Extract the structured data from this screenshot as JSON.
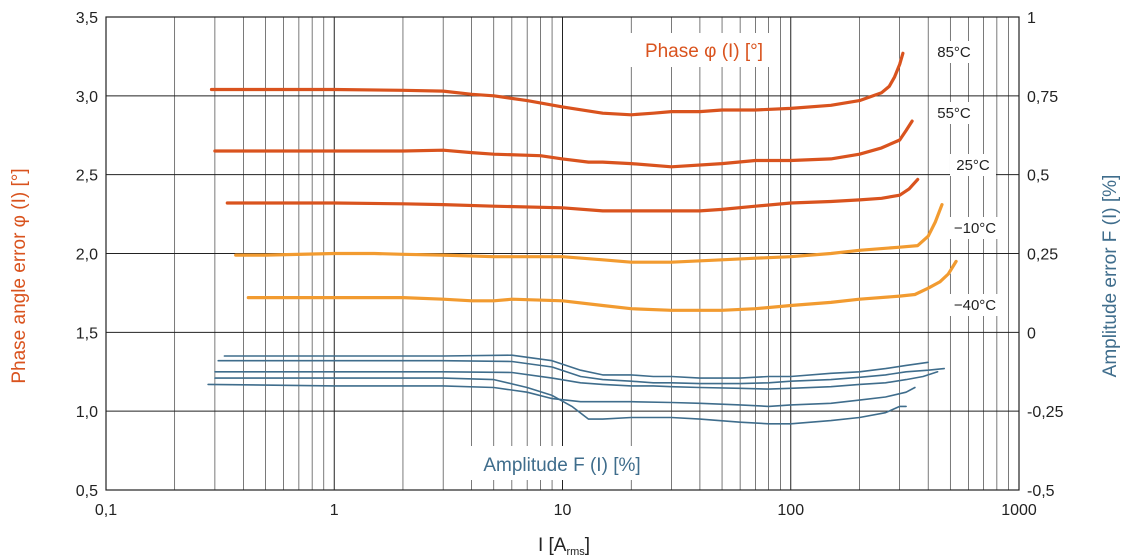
{
  "chart_data": {
    "type": "line",
    "xlabel_main": "I [A",
    "xlabel_sub": "rms",
    "xlabel_end": "]",
    "ylabel_left": "Phase angle error φ (I) [°]",
    "ylabel_right": "Amplitude error F (I) [%]",
    "x_scale": "log",
    "xlim": [
      0.1,
      1000
    ],
    "ylim_left": [
      0.5,
      3.5
    ],
    "ylim_right": [
      -0.5,
      1
    ],
    "grid": true,
    "x_ticks": [
      {
        "value": 0.1,
        "label": "0,1"
      },
      {
        "value": 1,
        "label": "1"
      },
      {
        "value": 10,
        "label": "10"
      },
      {
        "value": 100,
        "label": "100"
      },
      {
        "value": 1000,
        "label": "1000"
      }
    ],
    "y_ticks_left": [
      {
        "value": 0.5,
        "label": "0,5"
      },
      {
        "value": 1.0,
        "label": "1,0"
      },
      {
        "value": 1.5,
        "label": "1,5"
      },
      {
        "value": 2.0,
        "label": "2,0"
      },
      {
        "value": 2.5,
        "label": "2,5"
      },
      {
        "value": 3.0,
        "label": "3,0"
      },
      {
        "value": 3.5,
        "label": "3,5"
      }
    ],
    "y_ticks_right": [
      {
        "value": -0.5,
        "label": "-0,5"
      },
      {
        "value": -0.25,
        "label": "-0,25"
      },
      {
        "value": 0,
        "label": "0"
      },
      {
        "value": 0.25,
        "label": "0,25"
      },
      {
        "value": 0.5,
        "label": "0,5"
      },
      {
        "value": 0.75,
        "label": "0,75"
      },
      {
        "value": 1,
        "label": "1"
      }
    ],
    "annotations": {
      "phase": "Phase φ (I) [°]",
      "amplitude": "Amplitude F (I) [%]"
    },
    "colors": {
      "phase_hot": "#d9531e",
      "phase_cold": "#f29b30",
      "amplitude": "#3f6d8c",
      "phase_text": "#d9531e",
      "amplitude_text": "#3f6d8c",
      "grid": "#222222"
    },
    "series": [
      {
        "name": "85°C",
        "group": "phase",
        "color": "#d9531e",
        "points": [
          [
            0.29,
            3.04
          ],
          [
            0.5,
            3.04
          ],
          [
            1,
            3.04
          ],
          [
            2,
            3.035
          ],
          [
            3,
            3.03
          ],
          [
            4,
            3.01
          ],
          [
            5,
            3.0
          ],
          [
            7,
            2.97
          ],
          [
            10,
            2.93
          ],
          [
            15,
            2.89
          ],
          [
            20,
            2.88
          ],
          [
            25,
            2.89
          ],
          [
            30,
            2.9
          ],
          [
            40,
            2.9
          ],
          [
            50,
            2.91
          ],
          [
            70,
            2.91
          ],
          [
            100,
            2.92
          ],
          [
            150,
            2.94
          ],
          [
            200,
            2.97
          ],
          [
            250,
            3.02
          ],
          [
            270,
            3.06
          ],
          [
            285,
            3.12
          ],
          [
            300,
            3.2
          ],
          [
            310,
            3.27
          ]
        ]
      },
      {
        "name": "55°C",
        "group": "phase",
        "color": "#d9531e",
        "points": [
          [
            0.3,
            2.65
          ],
          [
            0.5,
            2.65
          ],
          [
            1,
            2.65
          ],
          [
            2,
            2.65
          ],
          [
            3,
            2.655
          ],
          [
            4,
            2.64
          ],
          [
            5,
            2.63
          ],
          [
            8,
            2.62
          ],
          [
            10,
            2.6
          ],
          [
            13,
            2.58
          ],
          [
            15,
            2.58
          ],
          [
            20,
            2.57
          ],
          [
            30,
            2.55
          ],
          [
            50,
            2.57
          ],
          [
            70,
            2.59
          ],
          [
            100,
            2.59
          ],
          [
            150,
            2.6
          ],
          [
            200,
            2.63
          ],
          [
            250,
            2.67
          ],
          [
            300,
            2.72
          ],
          [
            320,
            2.78
          ],
          [
            340,
            2.84
          ]
        ]
      },
      {
        "name": "25°C",
        "group": "phase",
        "color": "#d9531e",
        "points": [
          [
            0.34,
            2.32
          ],
          [
            0.5,
            2.32
          ],
          [
            1,
            2.32
          ],
          [
            2,
            2.315
          ],
          [
            3,
            2.31
          ],
          [
            5,
            2.3
          ],
          [
            10,
            2.29
          ],
          [
            15,
            2.27
          ],
          [
            20,
            2.27
          ],
          [
            30,
            2.27
          ],
          [
            40,
            2.27
          ],
          [
            50,
            2.28
          ],
          [
            70,
            2.3
          ],
          [
            100,
            2.32
          ],
          [
            150,
            2.33
          ],
          [
            200,
            2.34
          ],
          [
            250,
            2.35
          ],
          [
            300,
            2.37
          ],
          [
            330,
            2.41
          ],
          [
            360,
            2.47
          ]
        ]
      },
      {
        "name": "−10°C",
        "group": "phase",
        "color": "#f29b30",
        "points": [
          [
            0.37,
            1.99
          ],
          [
            0.5,
            1.99
          ],
          [
            1,
            2.0
          ],
          [
            1.5,
            2.0
          ],
          [
            2,
            1.995
          ],
          [
            3,
            1.99
          ],
          [
            5,
            1.98
          ],
          [
            10,
            1.98
          ],
          [
            15,
            1.96
          ],
          [
            20,
            1.945
          ],
          [
            30,
            1.945
          ],
          [
            50,
            1.96
          ],
          [
            70,
            1.97
          ],
          [
            100,
            1.98
          ],
          [
            150,
            2.0
          ],
          [
            200,
            2.02
          ],
          [
            300,
            2.04
          ],
          [
            360,
            2.05
          ],
          [
            400,
            2.11
          ],
          [
            430,
            2.2
          ],
          [
            460,
            2.31
          ]
        ]
      },
      {
        "name": "−40°C",
        "group": "phase",
        "color": "#f29b30",
        "points": [
          [
            0.42,
            1.72
          ],
          [
            0.5,
            1.72
          ],
          [
            1,
            1.72
          ],
          [
            2,
            1.72
          ],
          [
            3,
            1.71
          ],
          [
            4,
            1.7
          ],
          [
            5,
            1.7
          ],
          [
            6,
            1.71
          ],
          [
            10,
            1.7
          ],
          [
            15,
            1.67
          ],
          [
            20,
            1.65
          ],
          [
            30,
            1.64
          ],
          [
            50,
            1.64
          ],
          [
            70,
            1.65
          ],
          [
            100,
            1.67
          ],
          [
            150,
            1.69
          ],
          [
            200,
            1.71
          ],
          [
            300,
            1.73
          ],
          [
            350,
            1.74
          ],
          [
            400,
            1.78
          ],
          [
            450,
            1.82
          ],
          [
            490,
            1.87
          ],
          [
            530,
            1.95
          ]
        ]
      },
      {
        "name": "amp 85°C",
        "group": "amplitude",
        "color": "#3f6d8c",
        "points": [
          [
            0.33,
            1.35
          ],
          [
            1,
            1.35
          ],
          [
            3,
            1.35
          ],
          [
            6,
            1.355
          ],
          [
            9,
            1.32
          ],
          [
            12,
            1.26
          ],
          [
            15,
            1.23
          ],
          [
            20,
            1.23
          ],
          [
            25,
            1.22
          ],
          [
            30,
            1.22
          ],
          [
            40,
            1.21
          ],
          [
            60,
            1.21
          ],
          [
            80,
            1.22
          ],
          [
            100,
            1.22
          ],
          [
            150,
            1.24
          ],
          [
            200,
            1.25
          ],
          [
            260,
            1.27
          ],
          [
            320,
            1.29
          ],
          [
            400,
            1.31
          ]
        ]
      },
      {
        "name": "amp 55°C",
        "group": "amplitude",
        "color": "#3f6d8c",
        "points": [
          [
            0.31,
            1.32
          ],
          [
            1,
            1.32
          ],
          [
            3,
            1.32
          ],
          [
            6,
            1.315
          ],
          [
            9,
            1.28
          ],
          [
            12,
            1.22
          ],
          [
            15,
            1.2
          ],
          [
            20,
            1.19
          ],
          [
            25,
            1.18
          ],
          [
            30,
            1.18
          ],
          [
            40,
            1.175
          ],
          [
            60,
            1.175
          ],
          [
            80,
            1.18
          ],
          [
            100,
            1.19
          ],
          [
            150,
            1.2
          ],
          [
            200,
            1.215
          ],
          [
            260,
            1.23
          ],
          [
            320,
            1.25
          ],
          [
            400,
            1.26
          ],
          [
            470,
            1.27
          ]
        ]
      },
      {
        "name": "amp 25°C",
        "group": "amplitude",
        "color": "#3f6d8c",
        "points": [
          [
            0.3,
            1.25
          ],
          [
            1,
            1.25
          ],
          [
            3,
            1.25
          ],
          [
            6,
            1.245
          ],
          [
            9,
            1.21
          ],
          [
            12,
            1.18
          ],
          [
            15,
            1.17
          ],
          [
            20,
            1.16
          ],
          [
            25,
            1.16
          ],
          [
            30,
            1.155
          ],
          [
            40,
            1.15
          ],
          [
            60,
            1.145
          ],
          [
            80,
            1.14
          ],
          [
            100,
            1.145
          ],
          [
            150,
            1.155
          ],
          [
            200,
            1.17
          ],
          [
            260,
            1.18
          ],
          [
            320,
            1.2
          ],
          [
            380,
            1.22
          ],
          [
            440,
            1.25
          ]
        ]
      },
      {
        "name": "amp −10°C",
        "group": "amplitude",
        "color": "#3f6d8c",
        "points": [
          [
            0.28,
            1.17
          ],
          [
            1,
            1.16
          ],
          [
            3,
            1.16
          ],
          [
            5,
            1.15
          ],
          [
            7,
            1.12
          ],
          [
            9,
            1.08
          ],
          [
            12,
            1.06
          ],
          [
            15,
            1.06
          ],
          [
            20,
            1.06
          ],
          [
            30,
            1.055
          ],
          [
            40,
            1.05
          ],
          [
            60,
            1.04
          ],
          [
            80,
            1.03
          ],
          [
            100,
            1.04
          ],
          [
            150,
            1.05
          ],
          [
            200,
            1.07
          ],
          [
            260,
            1.09
          ],
          [
            320,
            1.12
          ],
          [
            350,
            1.15
          ]
        ]
      },
      {
        "name": "amp −40°C",
        "group": "amplitude",
        "color": "#3f6d8c",
        "points": [
          [
            0.3,
            1.21
          ],
          [
            1,
            1.21
          ],
          [
            3,
            1.21
          ],
          [
            5,
            1.2
          ],
          [
            7,
            1.15
          ],
          [
            9,
            1.1
          ],
          [
            11,
            1.03
          ],
          [
            13,
            0.95
          ],
          [
            15,
            0.95
          ],
          [
            20,
            0.96
          ],
          [
            30,
            0.96
          ],
          [
            40,
            0.95
          ],
          [
            60,
            0.93
          ],
          [
            80,
            0.92
          ],
          [
            100,
            0.92
          ],
          [
            150,
            0.94
          ],
          [
            200,
            0.96
          ],
          [
            260,
            0.99
          ],
          [
            300,
            1.03
          ],
          [
            320,
            1.03
          ]
        ]
      }
    ],
    "series_labels": [
      {
        "series": "85°C",
        "text": "85°C"
      },
      {
        "series": "55°C",
        "text": "55°C"
      },
      {
        "series": "25°C",
        "text": "25°C"
      },
      {
        "series": "−10°C",
        "text": "−10°C"
      },
      {
        "series": "−40°C",
        "text": "−40°C"
      }
    ]
  }
}
